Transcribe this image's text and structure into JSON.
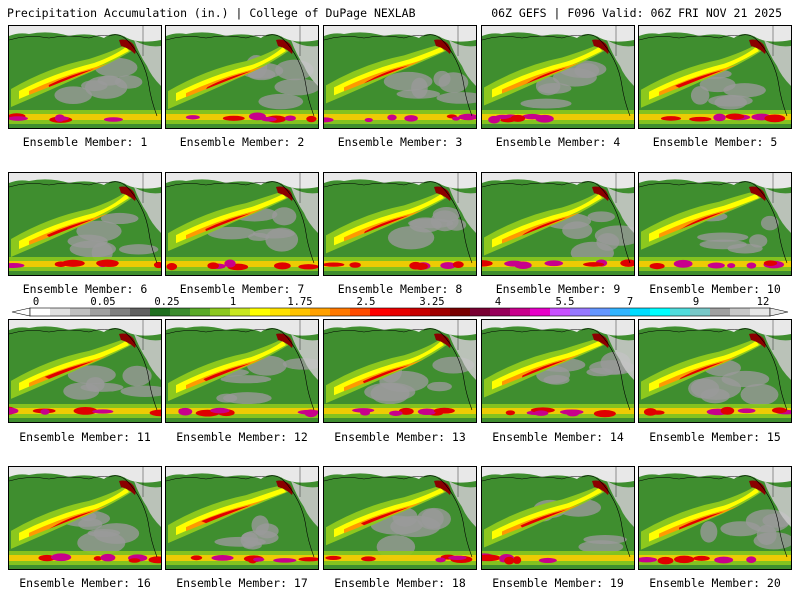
{
  "header": {
    "left_title": "Precipitation Accumulation (in.) | College of DuPage NEXLAB",
    "right_title": "06Z GEFS | F096 Valid: 06Z FRI NOV 21 2025"
  },
  "panel_label_prefix": "Ensemble Member: ",
  "members": [
    1,
    2,
    3,
    4,
    5,
    6,
    7,
    8,
    9,
    10,
    11,
    12,
    13,
    14,
    15,
    16,
    17,
    18,
    19,
    20
  ],
  "colorbar": {
    "tick_labels": [
      "0",
      "0.05",
      "0.25",
      "1",
      "1.75",
      "2.5",
      "3.25",
      "4",
      "5.5",
      "7",
      "9",
      "12"
    ],
    "colors": [
      "#ffffff",
      "#e0e0e0",
      "#c0c0c0",
      "#a0a0a0",
      "#808080",
      "#606060",
      "#1e6e1e",
      "#3c8c2e",
      "#5aaa28",
      "#8cc81e",
      "#c8e61e",
      "#ffff00",
      "#ffe100",
      "#ffc300",
      "#ffa000",
      "#ff7800",
      "#ff4b00",
      "#ff0000",
      "#e60000",
      "#c80000",
      "#a00000",
      "#780000",
      "#780032",
      "#96005a",
      "#c8008c",
      "#e600c8",
      "#c850ff",
      "#9678ff",
      "#6496ff",
      "#32b4ff",
      "#00dcff",
      "#00ffff",
      "#50dcdc",
      "#78c8c8",
      "#a0a0a0",
      "#c8c8c8",
      "#e6e6e6"
    ]
  }
}
